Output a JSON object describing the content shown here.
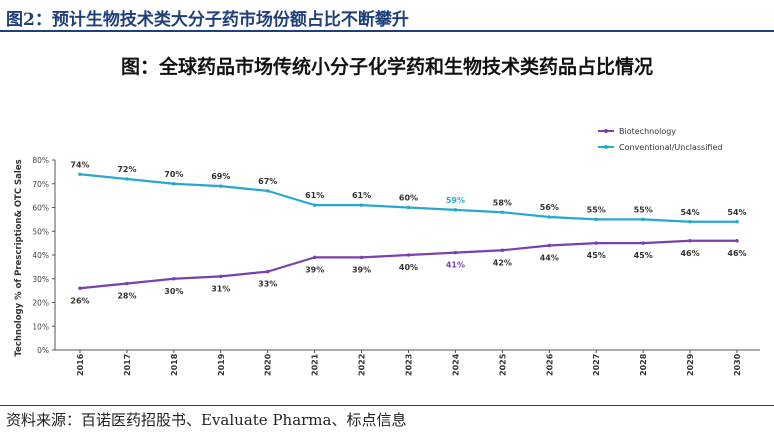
{
  "header": {
    "title": "图2：预计生物技术类大分子药市场份额占比不断攀升"
  },
  "footer": {
    "source": "资料来源：百诺医药招股书、Evaluate Pharma、标点信息"
  },
  "chart_data": {
    "type": "line",
    "title": "图：全球药品市场传统小分子化学药和生物技术类药品占比情况",
    "xlabel": "",
    "ylabel": "Technology % of Prescription& OTC Sales",
    "ylim": [
      0,
      80
    ],
    "yticks": [
      "0%",
      "10%",
      "20%",
      "30%",
      "40%",
      "50%",
      "60%",
      "70%",
      "80%"
    ],
    "categories": [
      "2016",
      "2017",
      "2018",
      "2019",
      "2020",
      "2021",
      "2022",
      "2023",
      "2024",
      "2025",
      "2026",
      "2027",
      "2028",
      "2029",
      "2030"
    ],
    "series": [
      {
        "name": "Biotechnology",
        "color": "#7b3fb0",
        "values": [
          26,
          28,
          30,
          31,
          33,
          39,
          39,
          40,
          41,
          42,
          44,
          45,
          45,
          46,
          46
        ],
        "labels": [
          "26%",
          "28%",
          "30%",
          "31%",
          "33%",
          "39%",
          "39%",
          "40%",
          "41%",
          "42%",
          "44%",
          "45%",
          "45%",
          "46%",
          "46%"
        ]
      },
      {
        "name": "Conventional/Unclassified",
        "color": "#2aa7cf",
        "values": [
          74,
          72,
          70,
          69,
          67,
          61,
          61,
          60,
          59,
          58,
          56,
          55,
          55,
          54,
          54
        ],
        "labels": [
          "74%",
          "72%",
          "70%",
          "69%",
          "67%",
          "61%",
          "61%",
          "60%",
          "59%",
          "58%",
          "56%",
          "55%",
          "55%",
          "54%",
          "54%"
        ]
      }
    ],
    "highlight_category": "2024",
    "legend_position": "top-right",
    "grid": false
  }
}
